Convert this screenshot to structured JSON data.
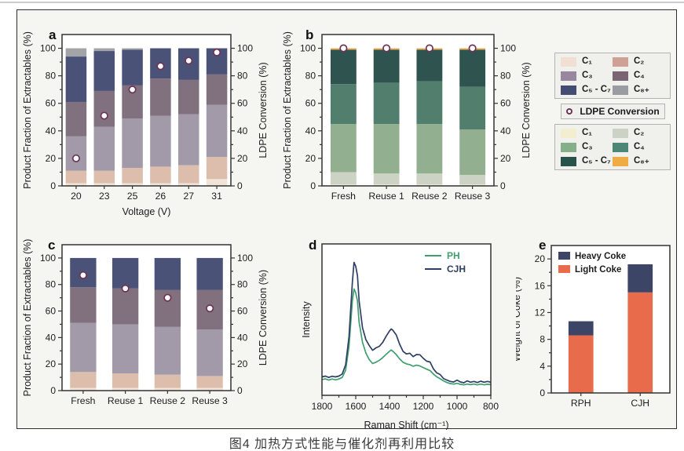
{
  "figure": {
    "caption": "图4  加热方式性能与催化剂再利用比较",
    "colors": {
      "frame_border": "#2e2e2e",
      "frame_bg": "#f5f5f2",
      "plot_bg": "#ffffff",
      "axis": "#333333",
      "text": "#1d1d1d",
      "marker_ring": "#6e3355",
      "marker_fill": "#ffffff"
    }
  },
  "legend_panel": {
    "product_purple": [
      {
        "label": "C₁",
        "color": "#f1dfd3"
      },
      {
        "label": "C₂",
        "color": "#cfa096"
      },
      {
        "label": "C₃",
        "color": "#98879e"
      },
      {
        "label": "C₄",
        "color": "#7a6573"
      },
      {
        "label": "C₅ - C₇",
        "color": "#454c73"
      },
      {
        "label": "C₈₊",
        "color": "#9b9ca1"
      }
    ],
    "conversion_label": "LDPE Conversion",
    "product_green": [
      {
        "label": "C₁",
        "color": "#f2eecf"
      },
      {
        "label": "C₂",
        "color": "#ccd3c6"
      },
      {
        "label": "C₃",
        "color": "#85af89"
      },
      {
        "label": "C₄",
        "color": "#4d8674"
      },
      {
        "label": "C₅ - C₇",
        "color": "#2a524d"
      },
      {
        "label": "C₈₊",
        "color": "#efac45"
      }
    ]
  },
  "chart_data": [
    {
      "id": "a",
      "letter": "a",
      "type": "bar",
      "stacked": true,
      "xlabel": "Voltage (V)",
      "ylabel_left": "Product Fraction of Extractables (%)",
      "ylabel_right": "LDPE Conversion (%)",
      "categories": [
        "20",
        "23",
        "25",
        "26",
        "27",
        "31"
      ],
      "ylim": [
        0,
        110
      ],
      "yticks": [
        0,
        20,
        40,
        60,
        80,
        100
      ],
      "bar_ratio": 0.74,
      "series": [
        {
          "name": "C1",
          "color": "#f1e3d6",
          "values": [
            2,
            2,
            2,
            2,
            2,
            5
          ]
        },
        {
          "name": "C2",
          "color": "#ddbeac",
          "values": [
            9,
            9,
            11,
            12,
            13,
            16
          ]
        },
        {
          "name": "C3",
          "color": "#a39aa9",
          "values": [
            25,
            32,
            36,
            37,
            37,
            38
          ]
        },
        {
          "name": "C4",
          "color": "#81707e",
          "values": [
            25,
            26,
            24,
            27,
            25,
            22
          ]
        },
        {
          "name": "C5-C7",
          "color": "#4b5278",
          "values": [
            33,
            29,
            26,
            22,
            23,
            19
          ]
        },
        {
          "name": "C8+",
          "color": "#a2a4a8",
          "values": [
            6,
            2,
            1,
            0,
            0,
            0
          ]
        }
      ],
      "conversion": {
        "name": "LDPE Conversion",
        "values": [
          20,
          51,
          70,
          87,
          91,
          97
        ]
      }
    },
    {
      "id": "b",
      "letter": "b",
      "type": "bar",
      "stacked": true,
      "xlabel": "",
      "ylabel_left": "Product Fraction of Extractables (%)",
      "ylabel_right": "LDPE Conversion (%)",
      "categories": [
        "Fresh",
        "Reuse 1",
        "Reuse 2",
        "Reuse 3"
      ],
      "ylim": [
        0,
        110
      ],
      "yticks": [
        0,
        20,
        40,
        60,
        80,
        100
      ],
      "bar_ratio": 0.6,
      "series": [
        {
          "name": "C1",
          "color": "#f2eecf",
          "values": [
            1,
            1,
            1,
            1
          ]
        },
        {
          "name": "C2",
          "color": "#ccd3c4",
          "values": [
            9,
            8,
            8,
            7
          ]
        },
        {
          "name": "C3",
          "color": "#92b08f",
          "values": [
            35,
            36,
            36,
            33
          ]
        },
        {
          "name": "C4",
          "color": "#527e6d",
          "values": [
            29,
            30,
            31,
            31
          ]
        },
        {
          "name": "C5-C7",
          "color": "#2f5450",
          "values": [
            25,
            24,
            23,
            27
          ]
        },
        {
          "name": "C8+",
          "color": "#eea94a",
          "values": [
            1,
            1,
            1,
            1
          ]
        }
      ],
      "conversion": {
        "name": "LDPE Conversion",
        "values": [
          100,
          100,
          100,
          100
        ]
      }
    },
    {
      "id": "c",
      "letter": "c",
      "type": "bar",
      "stacked": true,
      "xlabel": "",
      "ylabel_left": "Product Fraction of Extractables (%)",
      "ylabel_right": "LDPE Conversion (%)",
      "categories": [
        "Fresh",
        "Reuse 1",
        "Reuse 2",
        "Reuse 3"
      ],
      "ylim": [
        0,
        110
      ],
      "yticks": [
        0,
        20,
        40,
        60,
        80,
        100
      ],
      "bar_ratio": 0.62,
      "series": [
        {
          "name": "C1",
          "color": "#f1e3d6",
          "values": [
            2,
            2,
            2,
            2
          ]
        },
        {
          "name": "C2",
          "color": "#ddbeac",
          "values": [
            12,
            11,
            10,
            9
          ]
        },
        {
          "name": "C3",
          "color": "#a39aa9",
          "values": [
            37,
            37,
            36,
            35
          ]
        },
        {
          "name": "C4",
          "color": "#81707e",
          "values": [
            27,
            27,
            28,
            30
          ]
        },
        {
          "name": "C5-C7",
          "color": "#4b5278",
          "values": [
            22,
            23,
            24,
            24
          ]
        },
        {
          "name": "C8+",
          "color": "#a2a4a8",
          "values": [
            0,
            0,
            0,
            0
          ]
        }
      ],
      "conversion": {
        "name": "LDPE Conversion",
        "values": [
          87,
          77,
          70,
          62
        ]
      }
    },
    {
      "id": "d",
      "letter": "d",
      "type": "line",
      "xlabel": "Raman Shift (cm⁻¹)",
      "ylabel": "Intensity",
      "xlim": [
        1800,
        800
      ],
      "xticks": [
        1800,
        1600,
        1400,
        1200,
        1000,
        800
      ],
      "x": [
        1800,
        1780,
        1760,
        1740,
        1720,
        1700,
        1680,
        1660,
        1640,
        1620,
        1610,
        1600,
        1590,
        1580,
        1560,
        1540,
        1520,
        1500,
        1480,
        1460,
        1440,
        1420,
        1400,
        1390,
        1380,
        1360,
        1340,
        1320,
        1300,
        1280,
        1260,
        1240,
        1220,
        1200,
        1180,
        1160,
        1140,
        1120,
        1100,
        1080,
        1060,
        1040,
        1020,
        1000,
        980,
        960,
        940,
        920,
        900,
        880,
        860,
        840,
        820,
        800
      ],
      "series": [
        {
          "name": "PH",
          "color": "#3f9e6e",
          "y": [
            0.05,
            0.055,
            0.046,
            0.054,
            0.048,
            0.054,
            0.066,
            0.12,
            0.3,
            0.64,
            0.73,
            0.7,
            0.64,
            0.48,
            0.33,
            0.25,
            0.2,
            0.17,
            0.18,
            0.195,
            0.215,
            0.24,
            0.262,
            0.272,
            0.262,
            0.238,
            0.205,
            0.18,
            0.168,
            0.162,
            0.15,
            0.158,
            0.152,
            0.14,
            0.128,
            0.118,
            0.092,
            0.07,
            0.056,
            0.04,
            0.028,
            0.02,
            0.016,
            0.022,
            0.014,
            0.01,
            0.016,
            0.012,
            0.016,
            0.01,
            0.016,
            0.011,
            0.015,
            0.012
          ]
        },
        {
          "name": "CJH",
          "color": "#2e3f63",
          "y": [
            0.07,
            0.076,
            0.066,
            0.075,
            0.07,
            0.076,
            0.092,
            0.16,
            0.37,
            0.78,
            0.93,
            0.9,
            0.83,
            0.64,
            0.44,
            0.35,
            0.305,
            0.27,
            0.288,
            0.3,
            0.33,
            0.375,
            0.415,
            0.43,
            0.42,
            0.385,
            0.315,
            0.262,
            0.242,
            0.248,
            0.222,
            0.238,
            0.236,
            0.21,
            0.188,
            0.182,
            0.13,
            0.1,
            0.088,
            0.058,
            0.046,
            0.036,
            0.032,
            0.046,
            0.032,
            0.026,
            0.04,
            0.03,
            0.036,
            0.028,
            0.038,
            0.03,
            0.036,
            0.03
          ]
        }
      ]
    },
    {
      "id": "e",
      "letter": "e",
      "type": "bar",
      "stacked": true,
      "xlabel": "",
      "ylabel_left": "Weight of Coke (%)",
      "categories": [
        "RPH",
        "CJH"
      ],
      "ylim": [
        0,
        22
      ],
      "yticks": [
        0,
        4,
        8,
        12,
        16,
        20
      ],
      "bar_ratio": 0.42,
      "series": [
        {
          "name": "Light Coke",
          "color": "#e86c4c",
          "values": [
            8.6,
            15.0
          ]
        },
        {
          "name": "Heavy Coke",
          "color": "#3d4566",
          "values": [
            2.1,
            4.2
          ]
        }
      ],
      "legend_order": [
        "Heavy Coke",
        "Light Coke"
      ]
    }
  ]
}
